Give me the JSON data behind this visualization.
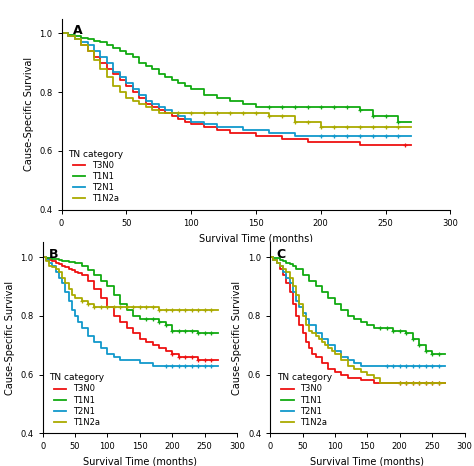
{
  "colors": {
    "T3N0": "#ee1111",
    "T1N1": "#11aa11",
    "T2N1": "#1199cc",
    "T1N2a": "#aaaa00"
  },
  "legend_labels": [
    "T3N0",
    "T1N1",
    "T2N1",
    "T1N2a"
  ],
  "ylabel": "Cause-Specific Survival",
  "xlabel": "Survival Time (months)",
  "ylim": [
    0.4,
    1.05
  ],
  "xlim": [
    0,
    300
  ],
  "yticks": [
    0.4,
    0.6,
    0.8,
    1.0
  ],
  "xticks": [
    0,
    50,
    100,
    150,
    200,
    250,
    300
  ],
  "background": "#ffffff",
  "panel_A": {
    "T3N0": {
      "x": [
        0,
        5,
        10,
        15,
        20,
        25,
        30,
        35,
        40,
        45,
        50,
        55,
        60,
        65,
        70,
        75,
        80,
        85,
        90,
        95,
        100,
        110,
        120,
        130,
        140,
        150,
        160,
        170,
        180,
        190,
        200,
        210,
        220,
        230,
        240,
        250,
        260,
        270
      ],
      "y": [
        1.0,
        0.99,
        0.98,
        0.96,
        0.94,
        0.92,
        0.9,
        0.88,
        0.86,
        0.84,
        0.82,
        0.8,
        0.78,
        0.76,
        0.75,
        0.74,
        0.73,
        0.72,
        0.71,
        0.7,
        0.69,
        0.68,
        0.67,
        0.66,
        0.66,
        0.65,
        0.65,
        0.64,
        0.64,
        0.63,
        0.63,
        0.63,
        0.63,
        0.62,
        0.62,
        0.62,
        0.62,
        0.62
      ],
      "censor_x": [
        265
      ],
      "censor_y": [
        0.62
      ]
    },
    "T1N1": {
      "x": [
        0,
        5,
        10,
        15,
        20,
        25,
        30,
        35,
        40,
        45,
        50,
        55,
        60,
        65,
        70,
        75,
        80,
        85,
        90,
        95,
        100,
        110,
        120,
        130,
        140,
        150,
        155,
        160,
        170,
        180,
        190,
        200,
        210,
        220,
        230,
        240,
        250,
        260,
        270
      ],
      "y": [
        1.0,
        0.995,
        0.99,
        0.985,
        0.98,
        0.975,
        0.97,
        0.96,
        0.95,
        0.94,
        0.93,
        0.92,
        0.9,
        0.89,
        0.88,
        0.86,
        0.85,
        0.84,
        0.83,
        0.82,
        0.81,
        0.79,
        0.78,
        0.77,
        0.76,
        0.75,
        0.75,
        0.75,
        0.75,
        0.75,
        0.75,
        0.75,
        0.75,
        0.75,
        0.74,
        0.72,
        0.72,
        0.7,
        0.7
      ],
      "censor_x": [
        160,
        170,
        180,
        190,
        200,
        210,
        220,
        230,
        240,
        250,
        260
      ],
      "censor_y": [
        0.75,
        0.75,
        0.75,
        0.75,
        0.75,
        0.75,
        0.75,
        0.74,
        0.72,
        0.72,
        0.7
      ]
    },
    "T2N1": {
      "x": [
        0,
        5,
        10,
        15,
        20,
        25,
        30,
        35,
        40,
        45,
        50,
        55,
        60,
        65,
        70,
        75,
        80,
        85,
        90,
        95,
        100,
        110,
        120,
        130,
        140,
        150,
        160,
        170,
        180,
        190,
        200,
        210,
        220,
        230,
        240,
        250,
        260,
        270
      ],
      "y": [
        1.0,
        0.99,
        0.98,
        0.97,
        0.96,
        0.94,
        0.92,
        0.9,
        0.87,
        0.85,
        0.83,
        0.81,
        0.79,
        0.77,
        0.76,
        0.75,
        0.74,
        0.73,
        0.72,
        0.71,
        0.7,
        0.69,
        0.68,
        0.68,
        0.67,
        0.67,
        0.66,
        0.66,
        0.65,
        0.65,
        0.65,
        0.65,
        0.65,
        0.65,
        0.65,
        0.65,
        0.65,
        0.65
      ],
      "censor_x": [
        200,
        210,
        220,
        230,
        240,
        250,
        260
      ],
      "censor_y": [
        0.65,
        0.65,
        0.65,
        0.65,
        0.65,
        0.65,
        0.65
      ]
    },
    "T1N2a": {
      "x": [
        0,
        5,
        10,
        15,
        20,
        25,
        30,
        35,
        40,
        45,
        50,
        55,
        60,
        65,
        70,
        75,
        80,
        90,
        100,
        110,
        120,
        130,
        140,
        150,
        160,
        170,
        180,
        190,
        200,
        210,
        220,
        230,
        240,
        250,
        260,
        270
      ],
      "y": [
        1.0,
        0.99,
        0.98,
        0.96,
        0.94,
        0.91,
        0.88,
        0.85,
        0.82,
        0.8,
        0.78,
        0.77,
        0.76,
        0.75,
        0.74,
        0.73,
        0.73,
        0.73,
        0.73,
        0.73,
        0.73,
        0.73,
        0.73,
        0.73,
        0.72,
        0.72,
        0.7,
        0.7,
        0.68,
        0.68,
        0.68,
        0.68,
        0.68,
        0.68,
        0.68,
        0.68
      ],
      "censor_x": [
        90,
        100,
        110,
        120,
        130,
        140,
        150,
        160,
        170,
        180,
        190,
        200,
        210,
        220,
        230,
        240,
        250,
        260
      ],
      "censor_y": [
        0.73,
        0.73,
        0.73,
        0.73,
        0.73,
        0.73,
        0.73,
        0.72,
        0.72,
        0.7,
        0.7,
        0.68,
        0.68,
        0.68,
        0.68,
        0.68,
        0.68,
        0.68
      ]
    }
  },
  "panel_B": {
    "T3N0": {
      "x": [
        0,
        5,
        10,
        15,
        20,
        25,
        30,
        35,
        40,
        45,
        50,
        55,
        60,
        70,
        80,
        90,
        100,
        110,
        120,
        130,
        140,
        150,
        160,
        170,
        180,
        190,
        200,
        210,
        220,
        230,
        240,
        250,
        260,
        270
      ],
      "y": [
        1.0,
        0.995,
        0.99,
        0.985,
        0.98,
        0.975,
        0.97,
        0.965,
        0.96,
        0.955,
        0.95,
        0.945,
        0.94,
        0.92,
        0.89,
        0.86,
        0.83,
        0.8,
        0.78,
        0.76,
        0.74,
        0.72,
        0.71,
        0.7,
        0.69,
        0.68,
        0.67,
        0.66,
        0.66,
        0.66,
        0.65,
        0.65,
        0.65,
        0.65
      ],
      "censor_x": [
        200,
        210,
        220,
        230,
        240,
        250,
        260
      ],
      "censor_y": [
        0.67,
        0.66,
        0.66,
        0.66,
        0.65,
        0.65,
        0.65
      ]
    },
    "T1N1": {
      "x": [
        0,
        5,
        10,
        15,
        20,
        25,
        30,
        35,
        40,
        50,
        60,
        70,
        80,
        90,
        100,
        110,
        120,
        130,
        140,
        150,
        160,
        170,
        180,
        190,
        200,
        210,
        220,
        230,
        240,
        250,
        260,
        270
      ],
      "y": [
        1.0,
        0.998,
        0.996,
        0.994,
        0.992,
        0.99,
        0.988,
        0.986,
        0.984,
        0.98,
        0.97,
        0.955,
        0.94,
        0.92,
        0.9,
        0.87,
        0.84,
        0.82,
        0.8,
        0.79,
        0.79,
        0.79,
        0.78,
        0.77,
        0.75,
        0.75,
        0.75,
        0.75,
        0.74,
        0.74,
        0.74,
        0.74
      ],
      "censor_x": [
        160,
        170,
        180,
        190,
        200,
        210,
        220,
        230,
        240,
        250,
        260
      ],
      "censor_y": [
        0.79,
        0.79,
        0.78,
        0.77,
        0.75,
        0.75,
        0.75,
        0.75,
        0.74,
        0.74,
        0.74
      ]
    },
    "T2N1": {
      "x": [
        0,
        5,
        10,
        15,
        20,
        25,
        30,
        35,
        40,
        45,
        50,
        55,
        60,
        70,
        80,
        90,
        100,
        110,
        120,
        130,
        140,
        150,
        160,
        170,
        180,
        190,
        200,
        210,
        220,
        230,
        240,
        250,
        260,
        270
      ],
      "y": [
        1.0,
        0.99,
        0.98,
        0.97,
        0.95,
        0.93,
        0.91,
        0.88,
        0.85,
        0.82,
        0.8,
        0.78,
        0.76,
        0.73,
        0.71,
        0.69,
        0.67,
        0.66,
        0.65,
        0.65,
        0.65,
        0.64,
        0.64,
        0.63,
        0.63,
        0.63,
        0.63,
        0.63,
        0.63,
        0.63,
        0.63,
        0.63,
        0.63,
        0.63
      ],
      "censor_x": [
        190,
        200,
        210,
        220,
        230,
        240,
        250,
        260
      ],
      "censor_y": [
        0.63,
        0.63,
        0.63,
        0.63,
        0.63,
        0.63,
        0.63,
        0.63
      ]
    },
    "T1N2a": {
      "x": [
        0,
        5,
        10,
        15,
        20,
        25,
        30,
        35,
        40,
        45,
        50,
        60,
        70,
        80,
        90,
        100,
        110,
        120,
        130,
        140,
        150,
        160,
        170,
        180,
        190,
        200,
        210,
        220,
        230,
        240,
        250,
        260,
        270
      ],
      "y": [
        1.0,
        0.985,
        0.97,
        0.965,
        0.96,
        0.95,
        0.93,
        0.91,
        0.89,
        0.87,
        0.86,
        0.85,
        0.84,
        0.83,
        0.83,
        0.83,
        0.83,
        0.83,
        0.83,
        0.83,
        0.83,
        0.83,
        0.83,
        0.82,
        0.82,
        0.82,
        0.82,
        0.82,
        0.82,
        0.82,
        0.82,
        0.82,
        0.82
      ],
      "censor_x": [
        60,
        70,
        80,
        90,
        100,
        110,
        120,
        130,
        140,
        150,
        160,
        170,
        180,
        190,
        200,
        210,
        220,
        230,
        240,
        250,
        260
      ],
      "censor_y": [
        0.85,
        0.84,
        0.83,
        0.83,
        0.83,
        0.83,
        0.83,
        0.83,
        0.83,
        0.83,
        0.83,
        0.83,
        0.82,
        0.82,
        0.82,
        0.82,
        0.82,
        0.82,
        0.82,
        0.82,
        0.82
      ]
    }
  },
  "panel_C": {
    "T3N0": {
      "x": [
        0,
        5,
        10,
        15,
        20,
        25,
        30,
        35,
        40,
        45,
        50,
        55,
        60,
        65,
        70,
        80,
        90,
        100,
        110,
        120,
        130,
        140,
        150,
        160,
        170,
        180,
        190,
        200,
        210,
        220,
        230,
        240,
        250,
        260,
        270
      ],
      "y": [
        1.0,
        0.99,
        0.98,
        0.96,
        0.94,
        0.91,
        0.88,
        0.84,
        0.8,
        0.77,
        0.74,
        0.71,
        0.69,
        0.67,
        0.66,
        0.64,
        0.62,
        0.61,
        0.6,
        0.59,
        0.59,
        0.58,
        0.58,
        0.57,
        0.57,
        0.57,
        0.57,
        0.57,
        0.57,
        0.57,
        0.57,
        0.57,
        0.57,
        0.57,
        0.57
      ],
      "censor_x": [
        200,
        210,
        220,
        230,
        240,
        250,
        260
      ],
      "censor_y": [
        0.57,
        0.57,
        0.57,
        0.57,
        0.57,
        0.57,
        0.57
      ]
    },
    "T1N1": {
      "x": [
        0,
        5,
        10,
        15,
        20,
        25,
        30,
        35,
        40,
        50,
        60,
        70,
        80,
        90,
        100,
        110,
        120,
        130,
        140,
        150,
        160,
        170,
        180,
        190,
        200,
        210,
        220,
        230,
        240,
        250,
        260,
        270
      ],
      "y": [
        1.0,
        0.998,
        0.995,
        0.99,
        0.985,
        0.98,
        0.975,
        0.97,
        0.96,
        0.94,
        0.92,
        0.9,
        0.88,
        0.86,
        0.84,
        0.82,
        0.8,
        0.79,
        0.78,
        0.77,
        0.76,
        0.76,
        0.76,
        0.75,
        0.75,
        0.74,
        0.72,
        0.7,
        0.68,
        0.67,
        0.67,
        0.67
      ],
      "censor_x": [
        170,
        180,
        190,
        200,
        210,
        220,
        230,
        240,
        250,
        260
      ],
      "censor_y": [
        0.76,
        0.76,
        0.75,
        0.75,
        0.74,
        0.72,
        0.7,
        0.68,
        0.67,
        0.67
      ]
    },
    "T2N1": {
      "x": [
        0,
        5,
        10,
        15,
        20,
        25,
        30,
        35,
        40,
        45,
        50,
        55,
        60,
        70,
        80,
        90,
        100,
        110,
        120,
        130,
        140,
        150,
        160,
        170,
        180,
        190,
        200,
        210,
        220,
        230,
        240,
        250,
        260,
        270
      ],
      "y": [
        1.0,
        0.99,
        0.98,
        0.97,
        0.95,
        0.93,
        0.91,
        0.88,
        0.85,
        0.83,
        0.81,
        0.79,
        0.77,
        0.74,
        0.72,
        0.7,
        0.68,
        0.66,
        0.65,
        0.64,
        0.63,
        0.63,
        0.63,
        0.63,
        0.63,
        0.63,
        0.63,
        0.63,
        0.63,
        0.63,
        0.63,
        0.63,
        0.63,
        0.63
      ],
      "censor_x": [
        180,
        190,
        200,
        210,
        220,
        230,
        240,
        250,
        260
      ],
      "censor_y": [
        0.63,
        0.63,
        0.63,
        0.63,
        0.63,
        0.63,
        0.63,
        0.63,
        0.63
      ]
    },
    "T1N2a": {
      "x": [
        0,
        5,
        10,
        15,
        20,
        25,
        30,
        35,
        40,
        45,
        50,
        55,
        60,
        65,
        70,
        75,
        80,
        85,
        90,
        95,
        100,
        110,
        120,
        130,
        140,
        150,
        160,
        170,
        180,
        190,
        200,
        210,
        220,
        230,
        240,
        250,
        260,
        270
      ],
      "y": [
        1.0,
        0.99,
        0.98,
        0.97,
        0.96,
        0.95,
        0.93,
        0.9,
        0.87,
        0.84,
        0.8,
        0.77,
        0.75,
        0.74,
        0.73,
        0.72,
        0.71,
        0.7,
        0.69,
        0.68,
        0.67,
        0.65,
        0.63,
        0.62,
        0.61,
        0.6,
        0.59,
        0.57,
        0.57,
        0.57,
        0.57,
        0.57,
        0.57,
        0.57,
        0.57,
        0.57,
        0.57,
        0.57
      ],
      "censor_x": [
        200,
        210,
        220,
        230,
        240,
        250,
        260
      ],
      "censor_y": [
        0.57,
        0.57,
        0.57,
        0.57,
        0.57,
        0.57,
        0.57
      ]
    }
  },
  "line_width": 1.3,
  "tick_fontsize": 6.0,
  "label_fontsize": 7.0,
  "legend_fontsize": 6.0,
  "legend_title_fontsize": 6.5,
  "panel_label_fontsize": 9
}
